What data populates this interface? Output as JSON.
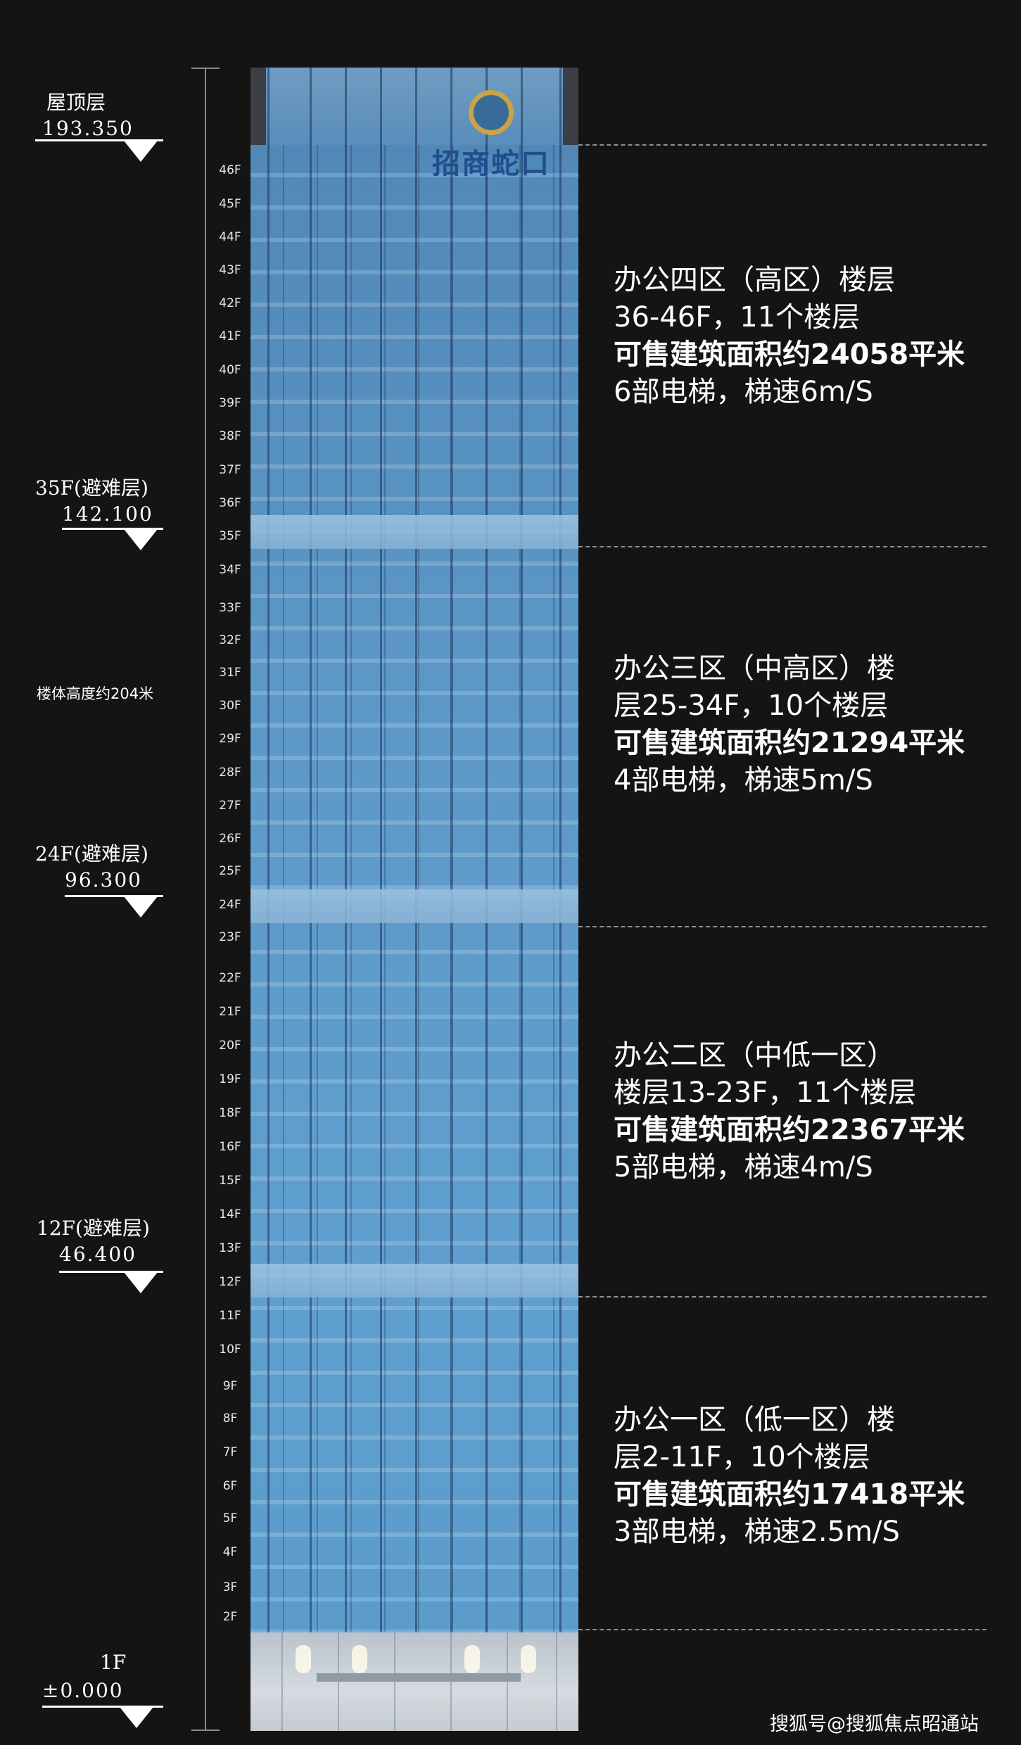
{
  "levels": [
    {
      "name": "屋顶层",
      "value": "193.350"
    },
    {
      "name": "35F(避难层)",
      "value": "142.100"
    },
    {
      "name": "24F(避难层)",
      "value": "96.300"
    },
    {
      "name": "12F(避难层)",
      "value": "46.400"
    },
    {
      "name": "1F",
      "value": "±0.000"
    }
  ],
  "height_note": "楼体高度约204米",
  "floors": [
    "46F",
    "45F",
    "44F",
    "43F",
    "42F",
    "41F",
    "40F",
    "39F",
    "38F",
    "37F",
    "36F",
    "35F",
    "34F",
    "33F",
    "32F",
    "31F",
    "30F",
    "29F",
    "28F",
    "27F",
    "26F",
    "25F",
    "24F",
    "23F",
    "22F",
    "21F",
    "20F",
    "19F",
    "18F",
    "16F",
    "15F",
    "14F",
    "13F",
    "12F",
    "11F",
    "10F",
    "9F",
    "8F",
    "7F",
    "6F",
    "5F",
    "4F",
    "3F",
    "2F"
  ],
  "logo": {
    "text": "招商蛇口"
  },
  "zones": [
    {
      "title": "办公四区（高区）楼层",
      "line2": "36-46F，11个楼层",
      "area": "可售建筑面积约24058平米",
      "elevator": "6部电梯，梯速6m/S"
    },
    {
      "title": "办公三区（中高区）楼",
      "line2": "层25-34F，10个楼层",
      "area": "可售建筑面积约21294平米",
      "elevator": "4部电梯，梯速5m/S"
    },
    {
      "title": "办公二区（中低一区）",
      "line2": "楼层13-23F，11个楼层",
      "area": "可售建筑面积约22367平米",
      "elevator": "5部电梯，梯速4m/S"
    },
    {
      "title": "办公一区（低一区）楼",
      "line2": "层2-11F，10个楼层",
      "area": "可售建筑面积约17418平米",
      "elevator": "3部电梯，梯速2.5m/S"
    }
  ],
  "watermark": "搜狐号@搜狐焦点昭通站",
  "colors": {
    "background": "#141414",
    "glass": "#5d99c8",
    "logo_gold": "#c9a24a",
    "logo_blue": "#1f4f8c"
  }
}
